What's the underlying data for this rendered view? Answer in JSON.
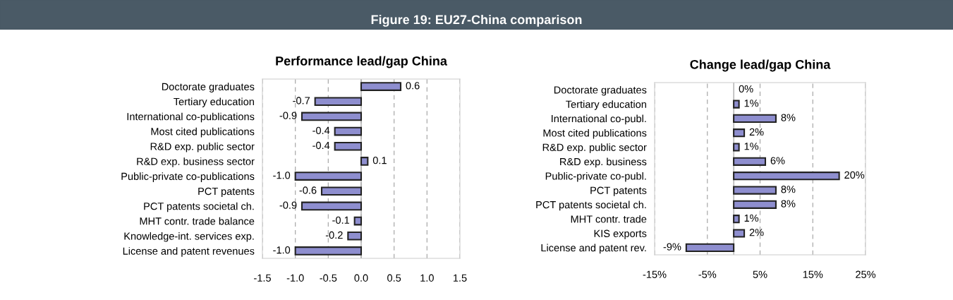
{
  "chart_data": [
    {
      "type": "other",
      "title": "Figure 19: EU27-China comparison"
    },
    {
      "type": "bar",
      "orientation": "horizontal",
      "title": "Performance lead/gap China",
      "categories": [
        "Doctorate graduates",
        "Tertiary education",
        "International co-publications",
        "Most cited publications",
        "R&D exp. public sector",
        "R&D exp. business sector",
        "Public-private co-publications",
        "PCT patents",
        "PCT patents societal ch.",
        "MHT contr. trade balance",
        "Knowledge-int. services exp.",
        "License and patent revenues"
      ],
      "values": [
        0.6,
        -0.7,
        -0.9,
        -0.4,
        -0.4,
        0.1,
        -1.0,
        -0.6,
        -0.9,
        -0.1,
        -0.2,
        -1.0
      ],
      "value_labels": [
        "0.6",
        "-0.7",
        "-0.9",
        "-0.4",
        "-0.4",
        "0.1",
        "-1.0",
        "-0.6",
        "-0.9",
        "-0.1",
        "-0.2",
        "-1.0"
      ],
      "color": "#8e8ecf",
      "xlim": [
        -1.5,
        1.5
      ],
      "xticks": [
        -1.5,
        {
          "value": -1.0,
          "label": "-1.0"
        },
        -0.5,
        {
          "value": 0.0,
          "label": "0.0"
        },
        0.5,
        {
          "value": 1.0,
          "label": "1.0"
        },
        1.5
      ],
      "grid": "x"
    },
    {
      "type": "bar",
      "orientation": "horizontal",
      "title": "Change lead/gap China",
      "categories": [
        "Doctorate graduates",
        "Tertiary education",
        "International co-publ.",
        "Most cited publications",
        "R&D exp. public sector",
        "R&D exp. business",
        "Public-private co-publ.",
        "PCT patents",
        "PCT patents societal ch.",
        "MHT contr. trade",
        "KIS exports",
        "License and patent rev."
      ],
      "values": [
        0,
        1,
        8,
        2,
        1,
        6,
        20,
        8,
        8,
        1,
        2,
        -9
      ],
      "value_labels": [
        "0%",
        "1%",
        "8%",
        "2%",
        "1%",
        "6%",
        "20%",
        "8%",
        "8%",
        "1%",
        "2%",
        "-9%"
      ],
      "color": "#8e8ecf",
      "xlim": [
        -15,
        25
      ],
      "xticks": [
        {
          "value": -15,
          "label": "-15%"
        },
        {
          "value": -5,
          "label": "-5%"
        },
        {
          "value": 5,
          "label": "5%"
        },
        {
          "value": 15,
          "label": "15%"
        },
        {
          "value": 25,
          "label": "25%"
        }
      ],
      "grid": "x"
    }
  ]
}
